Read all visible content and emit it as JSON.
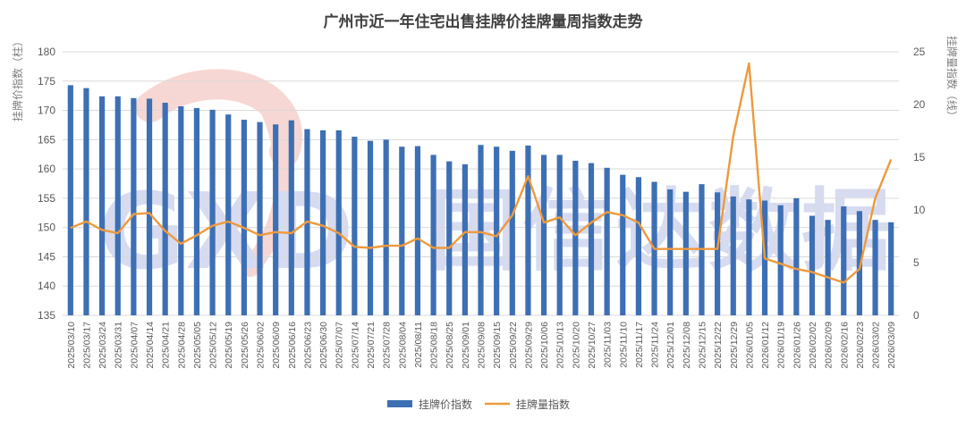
{
  "watermark": {
    "logo_text": "GXD",
    "brand_text": "国信达数据",
    "color": "#b8bfe4"
  },
  "chart_data": {
    "type": "bar+line",
    "title": "广州市近一年住宅出售挂牌价挂牌量周指数走势",
    "left_axis_label": "挂牌价指数（柱）",
    "right_axis_label": "挂牌量指数（线）",
    "left_ylim": [
      135,
      180
    ],
    "left_yticks": [
      "135",
      "140",
      "145",
      "150",
      "155",
      "160",
      "165",
      "170",
      "175",
      "180"
    ],
    "right_ylim": [
      0,
      25
    ],
    "right_yticks": [
      "0",
      "5",
      "10",
      "15",
      "20",
      "25"
    ],
    "grid": true,
    "legend_position": "bottom",
    "categories": [
      "2025/03/10",
      "2025/03/17",
      "2025/03/24",
      "2025/03/31",
      "2025/04/07",
      "2025/04/14",
      "2025/04/21",
      "2025/04/28",
      "2025/05/05",
      "2025/05/12",
      "2025/05/19",
      "2025/05/26",
      "2025/06/02",
      "2025/06/09",
      "2025/06/16",
      "2025/06/23",
      "2025/06/30",
      "2025/07/07",
      "2025/07/14",
      "2025/07/21",
      "2025/07/28",
      "2025/08/04",
      "2025/08/11",
      "2025/08/18",
      "2025/08/25",
      "2025/09/01",
      "2025/09/08",
      "2025/09/15",
      "2025/09/22",
      "2025/09/29",
      "2025/10/06",
      "2025/10/13",
      "2025/10/20",
      "2025/10/27",
      "2025/11/03",
      "2025/11/10",
      "2025/11/17",
      "2025/11/24",
      "2025/12/01",
      "2025/12/08",
      "2025/12/15",
      "2025/12/22",
      "2025/12/29",
      "2026/01/05",
      "2026/01/12",
      "2026/01/19",
      "2026/01/26",
      "2026/02/02",
      "2026/02/09",
      "2026/02/16",
      "2026/02/23",
      "2026/03/02",
      "2026/03/09"
    ],
    "series": [
      {
        "name": "挂牌价指数",
        "type": "bar",
        "axis": "left",
        "color": "#3d6fb4",
        "values": [
          174.3,
          173.8,
          172.4,
          172.4,
          172.1,
          172.0,
          171.3,
          170.7,
          170.4,
          170.1,
          169.3,
          168.4,
          168.0,
          167.6,
          168.3,
          166.8,
          166.6,
          166.6,
          165.5,
          164.8,
          165.0,
          163.8,
          163.9,
          162.4,
          161.3,
          160.8,
          164.1,
          163.8,
          163.1,
          164.0,
          162.4,
          162.4,
          161.4,
          161.0,
          160.2,
          159.0,
          158.6,
          157.8,
          156.5,
          156.1,
          157.4,
          156.0,
          155.3,
          154.8,
          154.6,
          153.8,
          155.0,
          152.0,
          151.3,
          153.6,
          152.8,
          151.3,
          150.9
        ]
      },
      {
        "name": "挂牌量指数",
        "type": "line",
        "axis": "right",
        "color": "#ed9a3c",
        "values": [
          8.3,
          8.9,
          8.1,
          7.8,
          9.6,
          9.7,
          8.0,
          6.8,
          7.6,
          8.5,
          8.9,
          8.3,
          7.6,
          7.9,
          7.8,
          8.9,
          8.5,
          7.8,
          6.5,
          6.4,
          6.6,
          6.6,
          7.3,
          6.4,
          6.4,
          7.9,
          7.9,
          7.5,
          9.5,
          13.2,
          8.8,
          9.3,
          7.6,
          8.8,
          9.8,
          9.5,
          8.8,
          6.3,
          6.3,
          6.3,
          6.3,
          6.3,
          17.0,
          23.9,
          5.4,
          4.9,
          4.4,
          4.1,
          3.6,
          3.1,
          4.4,
          11.1,
          14.8
        ]
      }
    ]
  }
}
